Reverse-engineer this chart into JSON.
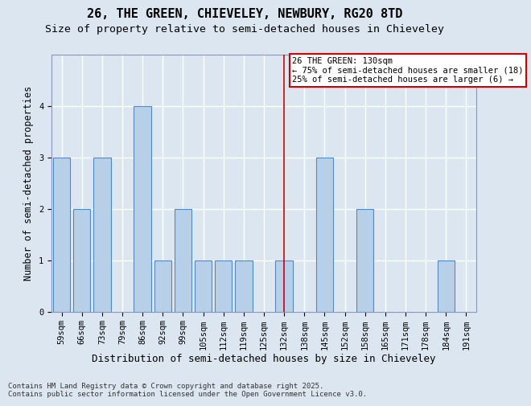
{
  "title1": "26, THE GREEN, CHIEVELEY, NEWBURY, RG20 8TD",
  "title2": "Size of property relative to semi-detached houses in Chieveley",
  "xlabel": "Distribution of semi-detached houses by size in Chieveley",
  "ylabel": "Number of semi-detached properties",
  "categories": [
    "59sqm",
    "66sqm",
    "73sqm",
    "79sqm",
    "86sqm",
    "92sqm",
    "99sqm",
    "105sqm",
    "112sqm",
    "119sqm",
    "125sqm",
    "132sqm",
    "138sqm",
    "145sqm",
    "152sqm",
    "158sqm",
    "165sqm",
    "171sqm",
    "178sqm",
    "184sqm",
    "191sqm"
  ],
  "values": [
    3,
    2,
    3,
    0,
    4,
    1,
    2,
    1,
    1,
    1,
    0,
    1,
    0,
    3,
    0,
    2,
    0,
    0,
    0,
    1,
    0
  ],
  "bar_color": "#b8cfe8",
  "bar_edge_color": "#5588bb",
  "highlight_index": 11,
  "highlight_color": "#cc0000",
  "annotation_text": "26 THE GREEN: 130sqm\n← 75% of semi-detached houses are smaller (18)\n25% of semi-detached houses are larger (6) →",
  "ylim": [
    0,
    5
  ],
  "yticks": [
    0,
    1,
    2,
    3,
    4
  ],
  "background_color": "#dce6f0",
  "grid_color": "#ffffff",
  "footnote": "Contains HM Land Registry data © Crown copyright and database right 2025.\nContains public sector information licensed under the Open Government Licence v3.0.",
  "title1_fontsize": 11,
  "title2_fontsize": 9.5,
  "xlabel_fontsize": 9,
  "ylabel_fontsize": 8.5,
  "tick_fontsize": 7.5,
  "footnote_fontsize": 6.5,
  "annot_fontsize": 7.5
}
